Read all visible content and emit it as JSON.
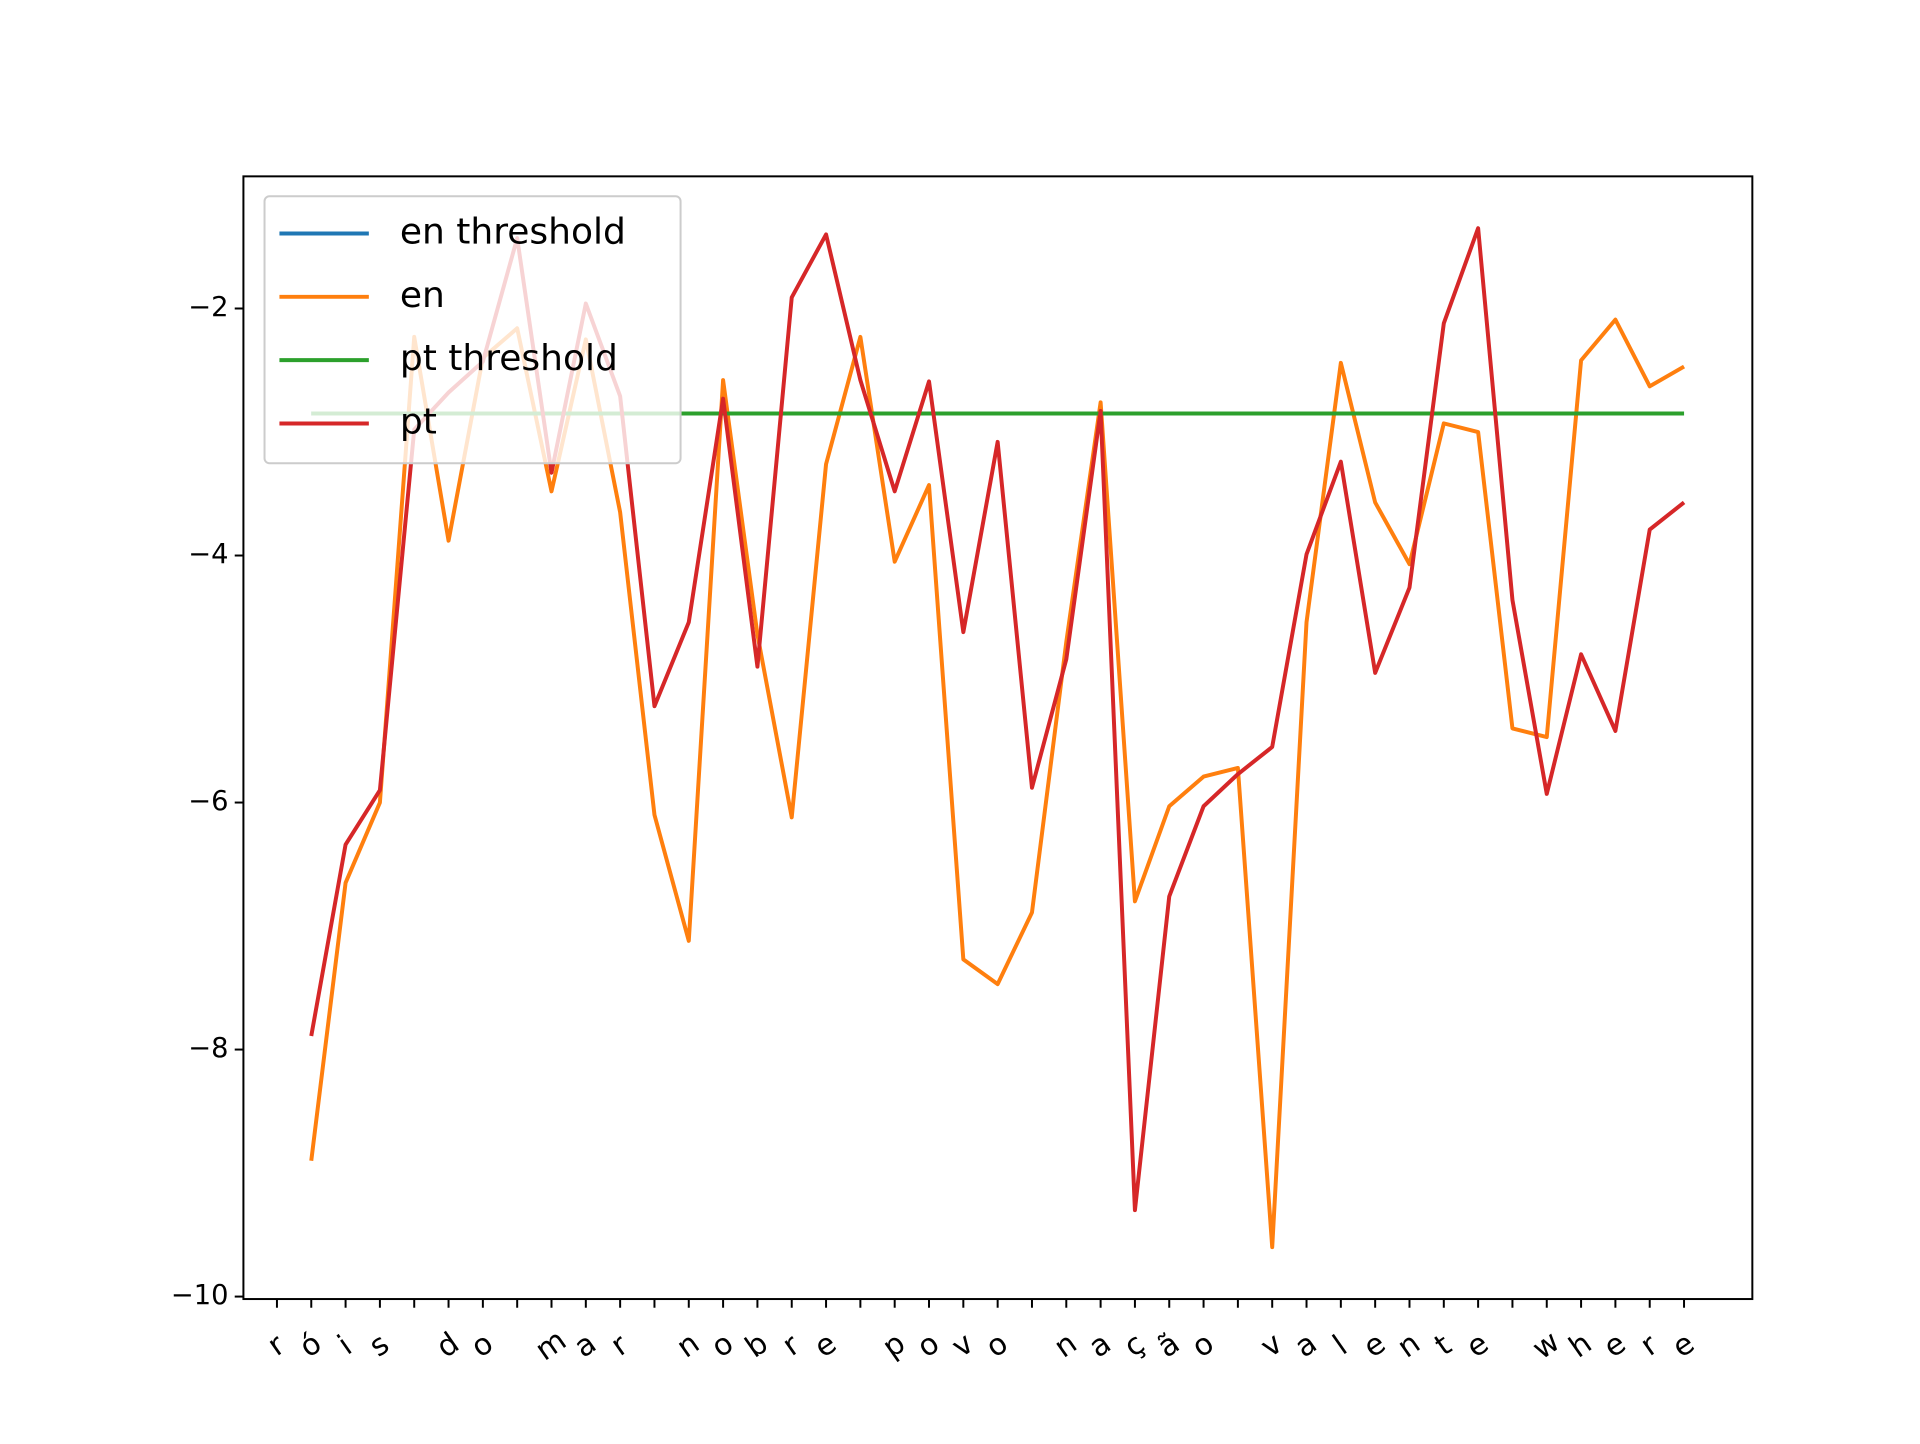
{
  "chart_data": {
    "type": "line",
    "categories": [
      "r",
      "ó",
      "i",
      "s",
      " ",
      "d",
      "o",
      " ",
      "m",
      "a",
      "r",
      " ",
      "n",
      "o",
      "b",
      "r",
      "e",
      " ",
      "p",
      "o",
      "v",
      "o",
      " ",
      "n",
      "a",
      "ç",
      "ã",
      "o",
      " ",
      "v",
      "a",
      "l",
      "e",
      "n",
      "t",
      "e",
      " ",
      "w",
      "h",
      "e",
      "r",
      "e"
    ],
    "series": [
      {
        "name": "en threshold",
        "color": "#1f77b4",
        "values": [
          null,
          -2.85,
          -2.85,
          -2.85,
          -2.85,
          -2.85,
          -2.85,
          -2.85,
          -2.85,
          -2.85,
          -2.85,
          -2.85,
          -2.85,
          -2.85,
          -2.85,
          -2.85,
          -2.85,
          -2.85,
          -2.85,
          -2.85,
          -2.85,
          -2.85,
          -2.85,
          -2.85,
          -2.85,
          -2.85,
          -2.85,
          -2.85,
          -2.85,
          -2.85,
          -2.85,
          -2.85,
          -2.85,
          -2.85,
          -2.85,
          -2.85,
          -2.85,
          -2.85,
          -2.85,
          -2.85,
          -2.85,
          -2.85
        ]
      },
      {
        "name": "en",
        "color": "#ff7f0e",
        "values": [
          null,
          -8.9,
          -6.65,
          -6.0,
          -2.23,
          -3.88,
          -2.4,
          -2.16,
          -3.48,
          -2.25,
          -3.65,
          -6.1,
          -7.12,
          -2.58,
          -4.64,
          -6.12,
          -3.26,
          -2.23,
          -4.05,
          -3.43,
          -7.27,
          -7.47,
          -6.89,
          -4.7,
          -2.76,
          -6.8,
          -6.03,
          -5.79,
          -5.72,
          -9.6,
          -4.54,
          -2.44,
          -3.57,
          -4.07,
          -2.93,
          -3.0,
          -5.4,
          -5.47,
          -2.42,
          -2.09,
          -2.63,
          -2.47
        ]
      },
      {
        "name": "pt threshold",
        "color": "#2ca02c",
        "values": [
          null,
          -2.85,
          -2.85,
          -2.85,
          -2.85,
          -2.85,
          -2.85,
          -2.85,
          -2.85,
          -2.85,
          -2.85,
          -2.85,
          -2.85,
          -2.85,
          -2.85,
          -2.85,
          -2.85,
          -2.85,
          -2.85,
          -2.85,
          -2.85,
          -2.85,
          -2.85,
          -2.85,
          -2.85,
          -2.85,
          -2.85,
          -2.85,
          -2.85,
          -2.85,
          -2.85,
          -2.85,
          -2.85,
          -2.85,
          -2.85,
          -2.85,
          -2.85,
          -2.85,
          -2.85,
          -2.85,
          -2.85,
          -2.85
        ]
      },
      {
        "name": "pt",
        "color": "#d62728",
        "values": [
          null,
          -7.89,
          -6.34,
          -5.9,
          -2.98,
          -2.68,
          -2.43,
          -1.43,
          -3.33,
          -1.96,
          -2.71,
          -5.22,
          -4.54,
          -2.73,
          -4.9,
          -1.91,
          -1.4,
          -2.58,
          -3.48,
          -2.59,
          -4.62,
          -3.08,
          -5.88,
          -4.84,
          -2.83,
          -9.3,
          -6.76,
          -6.03,
          -5.77,
          -5.55,
          -3.99,
          -3.24,
          -4.95,
          -4.26,
          -2.12,
          -1.35,
          -4.36,
          -5.93,
          -4.8,
          -5.42,
          -3.79,
          -3.57
        ]
      }
    ],
    "ylim": [
      -10.02,
      -0.93
    ],
    "yticks": [
      {
        "value": -2,
        "label": "−2"
      },
      {
        "value": -4,
        "label": "−4"
      },
      {
        "value": -6,
        "label": "−6"
      },
      {
        "value": -8,
        "label": "−8"
      },
      {
        "value": -10,
        "label": "−10"
      }
    ],
    "legend": "upper left"
  }
}
